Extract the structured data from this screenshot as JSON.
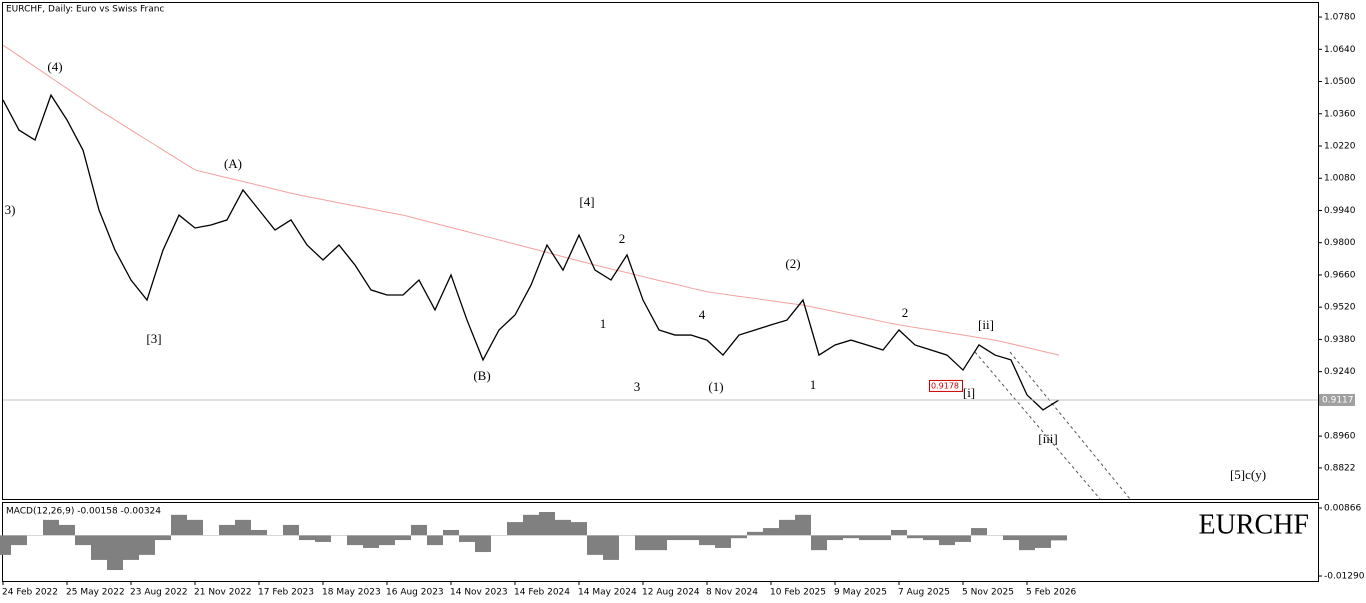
{
  "chart_data": [
    {
      "type": "line",
      "title": "EURCHF, Daily: Euro vs Swiss Franc",
      "categories": [
        "24 Feb 2022",
        null,
        null,
        null,
        "25 May 2022",
        null,
        null,
        null,
        "23 Aug 2022",
        null,
        null,
        null,
        "21 Nov 2022",
        null,
        null,
        null,
        "17 Feb 2023",
        null,
        null,
        null,
        "18 May 2023",
        null,
        null,
        null,
        "16 Aug 2023",
        null,
        null,
        null,
        "14 Nov 2023",
        null,
        null,
        null,
        "14 Feb 2024",
        null,
        null,
        null,
        "14 May 2024",
        null,
        null,
        null,
        "12 Aug 2024",
        null,
        null,
        null,
        "8 Nov 2024",
        null,
        null,
        null,
        "10 Feb 2025",
        null,
        null,
        null,
        "9 May 2025",
        null,
        null,
        null,
        "7 Aug 2025",
        null,
        null,
        null,
        "5 Nov 2025",
        null,
        null,
        null,
        "5 Feb 2026",
        null,
        null
      ],
      "values": [
        1.042,
        1.0289,
        1.0246,
        1.0441,
        1.0333,
        1.0202,
        0.9942,
        0.9768,
        0.9638,
        0.9551,
        0.9768,
        0.992,
        0.9864,
        0.9877,
        0.9899,
        1.0029,
        0.9942,
        0.9855,
        0.9899,
        0.979,
        0.9725,
        0.979,
        0.9703,
        0.9595,
        0.9573,
        0.9573,
        0.9638,
        0.9508,
        0.966,
        0.9464,
        0.9291,
        0.9421,
        0.9486,
        0.9616,
        0.979,
        0.9681,
        0.9833,
        0.9681,
        0.9638,
        0.9747,
        0.9551,
        0.9421,
        0.9399,
        0.9399,
        0.9377,
        0.9312,
        0.9399,
        0.9421,
        0.9443,
        0.9464,
        0.9551,
        0.9312,
        0.9356,
        0.9377,
        0.9356,
        0.9334,
        0.9421,
        0.9356,
        0.9334,
        0.9312,
        0.9247,
        0.9356,
        0.9312,
        0.9291,
        0.9139,
        0.9074,
        0.9117
      ],
      "color": "#000000",
      "moving_average": [
        1.0658,
        1.0611,
        1.0564,
        1.0517,
        1.047,
        1.0423,
        1.0376,
        1.0333,
        1.0289,
        1.0246,
        1.0203,
        1.0159,
        1.0116,
        1.0099,
        1.0082,
        1.0066,
        1.0049,
        1.0032,
        1.0015,
        1.0,
        0.9987,
        0.9973,
        0.996,
        0.9947,
        0.9933,
        0.992,
        0.9902,
        0.9884,
        0.9866,
        0.9848,
        0.983,
        0.9812,
        0.9794,
        0.9776,
        0.9758,
        0.9739,
        0.9721,
        0.9703,
        0.9686,
        0.967,
        0.9653,
        0.9636,
        0.962,
        0.9603,
        0.9587,
        0.9577,
        0.9567,
        0.9558,
        0.9548,
        0.9538,
        0.9529,
        0.9515,
        0.95,
        0.9486,
        0.9472,
        0.9457,
        0.9443,
        0.9432,
        0.9421,
        0.941,
        0.9399,
        0.9388,
        0.9377,
        0.9361,
        0.9345,
        0.9328,
        0.9312
      ],
      "ma_color": "#f4a0a0",
      "ylim": [
        0.8687,
        1.0841
      ],
      "yticks": [
        {
          "value": 1.078,
          "label": "1.0780"
        },
        {
          "value": 1.064,
          "label": "1.0640"
        },
        {
          "value": 1.05,
          "label": "1.0500"
        },
        {
          "value": 1.036,
          "label": "1.0360"
        },
        {
          "value": 1.022,
          "label": "1.0220"
        },
        {
          "value": 1.008,
          "label": "1.0080"
        },
        {
          "value": 0.994,
          "label": "0.9940"
        },
        {
          "value": 0.98,
          "label": "0.9800"
        },
        {
          "value": 0.966,
          "label": "0.9660"
        },
        {
          "value": 0.952,
          "label": "0.9520"
        },
        {
          "value": 0.938,
          "label": "0.9380"
        },
        {
          "value": 0.924,
          "label": "0.9240"
        },
        {
          "value": 0.896,
          "label": "0.8960"
        },
        {
          "value": 0.8822,
          "label": "0.8822"
        }
      ],
      "last_price": 0.9117,
      "marked_price": 0.9178,
      "annotations": [
        "(4)",
        "3)",
        "(A)",
        "[3]",
        "(B)",
        "[4]",
        "2",
        "1",
        "3",
        "4",
        "(1)",
        "(2)",
        "1",
        "2",
        "[ii]",
        "[i]",
        "[iii]",
        "[5]c(y)"
      ]
    },
    {
      "type": "bar",
      "title": "MACD(12,26,9) -0.00158 -0.00324",
      "symbol": "EURCHF",
      "values": [
        -0.0062,
        -0.0031,
        0.0001,
        0.0049,
        0.0033,
        -0.0031,
        -0.0078,
        -0.011,
        -0.0078,
        -0.0062,
        -0.0015,
        0.0065,
        0.0049,
        0.0001,
        0.0033,
        0.0049,
        0.0017,
        0.0001,
        0.0033,
        -0.0015,
        -0.0021,
        0.0001,
        -0.0031,
        -0.004,
        -0.0031,
        -0.0015,
        0.0033,
        -0.0031,
        0.0017,
        -0.0021,
        -0.0053,
        0.0001,
        0.0042,
        0.0065,
        0.0074,
        0.0049,
        0.0042,
        -0.0062,
        -0.0078,
        0.0001,
        -0.0047,
        -0.0047,
        -0.0015,
        -0.0015,
        -0.0031,
        -0.004,
        -0.0009,
        0.0011,
        0.0023,
        0.0049,
        0.0065,
        -0.0047,
        -0.0015,
        -0.0009,
        -0.0015,
        -0.0015,
        0.0017,
        -0.0009,
        -0.0015,
        -0.0031,
        -0.0021,
        0.0023,
        0.0001,
        -0.0015,
        -0.0047,
        -0.004,
        -0.0016
      ],
      "color": "#808080",
      "ylim": [
        -0.01448,
        0.01025
      ],
      "yticks": [
        0.00866,
        {
          "value": -0.0129,
          "label": "-0.01290"
        }
      ]
    }
  ]
}
